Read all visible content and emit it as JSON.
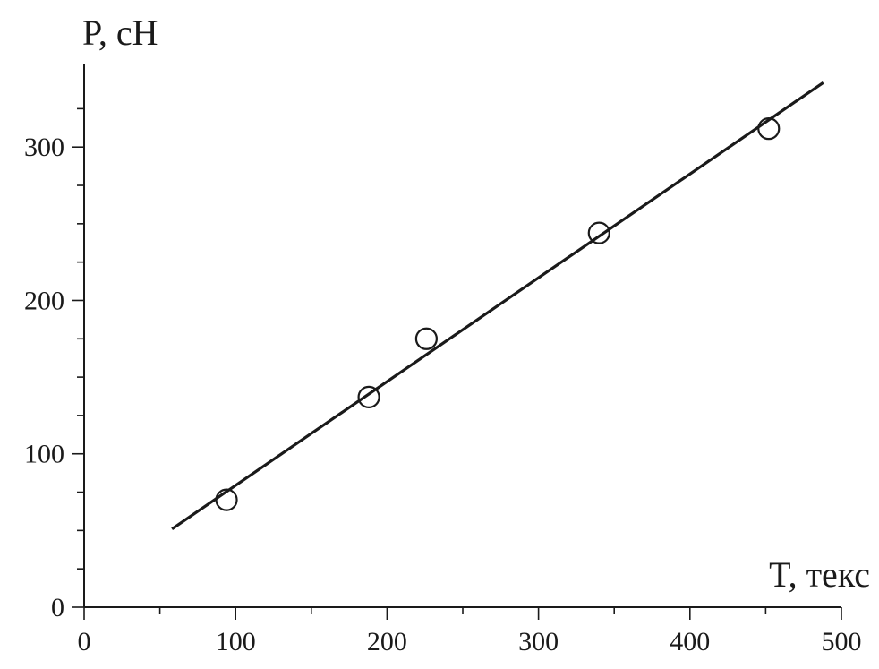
{
  "chart_data": {
    "type": "scatter",
    "xlabel": "T, текс",
    "ylabel": "P, сН",
    "xlim": [
      0,
      500
    ],
    "ylim": [
      0,
      350
    ],
    "x_ticks": [
      0,
      100,
      200,
      300,
      400,
      500
    ],
    "y_ticks": [
      0,
      100,
      200,
      300
    ],
    "x_minor_step": 50,
    "y_minor_step": 25,
    "grid": false,
    "points": [
      {
        "x": 94,
        "y": 70
      },
      {
        "x": 188,
        "y": 137
      },
      {
        "x": 226,
        "y": 175
      },
      {
        "x": 340,
        "y": 244
      },
      {
        "x": 452,
        "y": 312
      }
    ],
    "fit_line": {
      "x": [
        58,
        488
      ],
      "y": [
        51,
        342
      ]
    }
  }
}
